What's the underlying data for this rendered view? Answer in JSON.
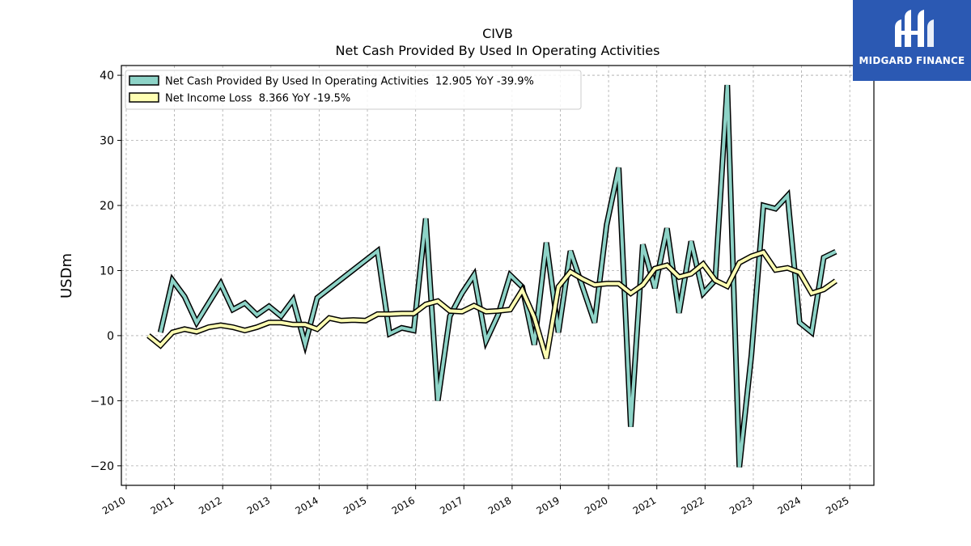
{
  "chart_data": {
    "type": "line",
    "title": "CIVB",
    "subtitle": "Net Cash Provided By Used In Operating Activities",
    "ylabel": "USDm",
    "xlabel": "",
    "ylim": [
      -23,
      41.5
    ],
    "xlim": [
      2009.9,
      2025.5
    ],
    "yticks": [
      -20,
      -10,
      0,
      10,
      20,
      30,
      40
    ],
    "ytick_labels": [
      "−20",
      "−10",
      "0",
      "10",
      "20",
      "30",
      "40"
    ],
    "xticks": [
      "2010",
      "2011",
      "2012",
      "2013",
      "2014",
      "2015",
      "2016",
      "2017",
      "2018",
      "2019",
      "2020",
      "2021",
      "2022",
      "2023",
      "2024",
      "2025"
    ],
    "grid": true,
    "legend_position": "top-left",
    "series": [
      {
        "name": "Net Cash Provided By Used In Operating Activities  12.905 YoY -39.9%",
        "color": "#8dd3c7",
        "x": [
          2010.71,
          2010.96,
          2011.21,
          2011.46,
          2011.71,
          2011.96,
          2012.21,
          2012.46,
          2012.71,
          2012.96,
          2013.21,
          2013.46,
          2013.71,
          2013.96,
          2015.21,
          2015.46,
          2015.71,
          2015.96,
          2016.21,
          2016.46,
          2016.71,
          2016.96,
          2017.21,
          2017.46,
          2017.71,
          2017.96,
          2018.21,
          2018.46,
          2018.71,
          2018.96,
          2019.21,
          2019.46,
          2019.71,
          2019.96,
          2020.21,
          2020.46,
          2020.71,
          2020.96,
          2021.21,
          2021.46,
          2021.71,
          2021.96,
          2022.21,
          2022.46,
          2022.71,
          2022.96,
          2023.21,
          2023.46,
          2023.71,
          2023.96,
          2024.21,
          2024.46,
          2024.71
        ],
        "values": [
          0.5,
          8.5,
          6.0,
          2.0,
          5.0,
          8.0,
          4.0,
          5.0,
          3.2,
          4.5,
          3.0,
          5.5,
          -1.3,
          5.8,
          13.0,
          0.3,
          1.2,
          0.8,
          18.0,
          -10.0,
          3.0,
          6.5,
          9.3,
          -0.8,
          3.2,
          9.3,
          7.5,
          -1.4,
          14.3,
          0.5,
          13.0,
          7.5,
          2.0,
          17.0,
          25.8,
          -14.0,
          14.0,
          7.3,
          16.5,
          3.5,
          14.5,
          6.5,
          8.5,
          38.5,
          -20.2,
          -3.0,
          20.0,
          19.5,
          21.5,
          2.0,
          0.5,
          12.0,
          12.9
        ]
      },
      {
        "name": "Net Income Loss  8.366 YoY -19.5%",
        "color": "#ffffb3",
        "x": [
          2010.46,
          2010.71,
          2010.96,
          2011.21,
          2011.46,
          2011.71,
          2011.96,
          2012.21,
          2012.46,
          2012.71,
          2012.96,
          2013.21,
          2013.46,
          2013.71,
          2013.96,
          2014.21,
          2014.46,
          2014.71,
          2014.96,
          2015.21,
          2015.46,
          2015.71,
          2015.96,
          2016.21,
          2016.46,
          2016.71,
          2016.96,
          2017.21,
          2017.46,
          2017.71,
          2017.96,
          2018.21,
          2018.46,
          2018.71,
          2018.96,
          2019.21,
          2019.46,
          2019.71,
          2019.96,
          2020.21,
          2020.46,
          2020.71,
          2020.96,
          2021.21,
          2021.46,
          2021.71,
          2021.96,
          2022.21,
          2022.46,
          2022.71,
          2022.96,
          2023.21,
          2023.46,
          2023.71,
          2023.96,
          2024.21,
          2024.46,
          2024.71
        ],
        "values": [
          0.0,
          -1.5,
          0.5,
          1.0,
          0.6,
          1.3,
          1.6,
          1.3,
          0.8,
          1.3,
          2.0,
          2.0,
          1.7,
          1.7,
          1.0,
          2.7,
          2.3,
          2.4,
          2.3,
          3.3,
          3.3,
          3.4,
          3.4,
          4.8,
          5.3,
          3.8,
          3.7,
          4.6,
          3.7,
          3.8,
          4.0,
          7.0,
          2.8,
          -3.5,
          7.5,
          9.8,
          8.7,
          7.8,
          8.0,
          8.0,
          6.5,
          7.8,
          10.3,
          10.8,
          9.0,
          9.5,
          11.0,
          8.5,
          7.6,
          11.2,
          12.2,
          12.8,
          10.1,
          10.4,
          9.7,
          6.5,
          7.1,
          8.4
        ]
      }
    ]
  },
  "logo": {
    "text": "MIDGARD FINANCE",
    "color": "#2b59b3"
  }
}
